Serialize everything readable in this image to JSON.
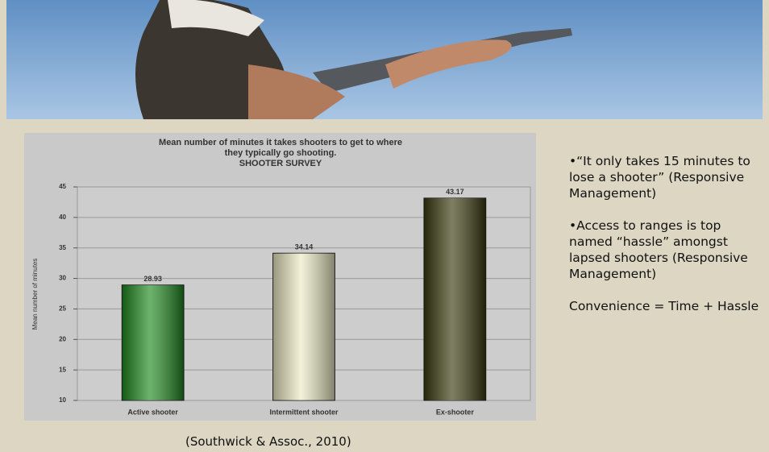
{
  "chart_data": {
    "type": "bar",
    "title": [
      "Mean number of minutes it takes shooters to get to where",
      "they typically go shooting.",
      "SHOOTER SURVEY"
    ],
    "y_label": "Mean number of minutes",
    "categories": [
      "Active shooter",
      "Intermittent shooter",
      "Ex-shooter"
    ],
    "values": [
      28.93,
      34.14,
      43.17
    ],
    "colors": [
      "#1f8a1f",
      "#ecebc4",
      "#3a3a0e"
    ],
    "ylim": [
      10,
      45
    ],
    "yticks": [
      10,
      15,
      20,
      25,
      30,
      35,
      40,
      45
    ],
    "grid": true
  },
  "notes": [
    "•“It only takes 15 minutes to lose a shooter” (Responsive Management)",
    "•Access to ranges is top named “hassle” amongst lapsed shooters (Responsive Management)",
    "Convenience = Time + Hassle"
  ],
  "source": "(Southwick & Assoc., 2010)"
}
